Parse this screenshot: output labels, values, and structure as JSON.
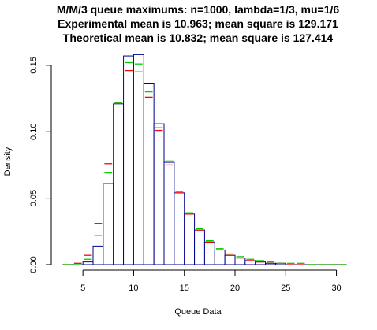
{
  "chart_data": {
    "type": "bar",
    "title_lines": [
      "M/M/3 queue maximums: n=1000, lambda=1/3, mu=1/6",
      "Experimental mean is 10.963; mean square is 129.171",
      "Theoretical mean is 10.832; mean square is 127.414"
    ],
    "xlabel": "Queue Data",
    "ylabel": "Density",
    "xlim": [
      2.5,
      30.5
    ],
    "ylim": [
      0,
      0.16
    ],
    "xticks": [
      5,
      10,
      15,
      20,
      25,
      30
    ],
    "yticks": [
      0.0,
      0.05,
      0.1,
      0.15
    ],
    "ytick_labels": [
      "0.00",
      "0.05",
      "0.10",
      "0.15"
    ],
    "bin_width": 1,
    "bins_left": [
      3,
      4,
      5,
      6,
      7,
      8,
      9,
      10,
      11,
      12,
      13,
      14,
      15,
      16,
      17,
      18,
      19,
      20,
      21,
      22,
      23,
      24,
      25,
      26,
      27,
      28,
      29,
      30
    ],
    "histogram_density": [
      0.0,
      0.0,
      0.002,
      0.014,
      0.061,
      0.121,
      0.157,
      0.158,
      0.136,
      0.106,
      0.077,
      0.054,
      0.038,
      0.026,
      0.017,
      0.011,
      0.007,
      0.005,
      0.003,
      0.002,
      0.001,
      0.001,
      0.0,
      0.0,
      0.0,
      0.0,
      0.0,
      0.0
    ],
    "series": [
      {
        "color": "#ff0000",
        "values": [
          0.0,
          0.001,
          0.007,
          0.031,
          0.076,
          0.122,
          0.146,
          0.145,
          0.126,
          0.101,
          0.075,
          0.054,
          0.038,
          0.026,
          0.017,
          0.011,
          0.007,
          0.005,
          0.003,
          0.002,
          0.001,
          0.001,
          0.0,
          0.0,
          0.0,
          0.0,
          0.0,
          0.0
        ]
      },
      {
        "color": "#00cc00",
        "values": [
          0.0,
          0.0,
          0.004,
          0.022,
          0.069,
          0.122,
          0.152,
          0.151,
          0.13,
          0.103,
          0.078,
          0.055,
          0.039,
          0.027,
          0.018,
          0.012,
          0.008,
          0.006,
          0.004,
          0.003,
          0.002,
          0.001,
          0.001,
          0.001,
          0.0,
          0.0,
          0.0,
          0.0
        ]
      }
    ],
    "bar_outline_color": "#00008b",
    "grid": false,
    "legend": "none"
  }
}
